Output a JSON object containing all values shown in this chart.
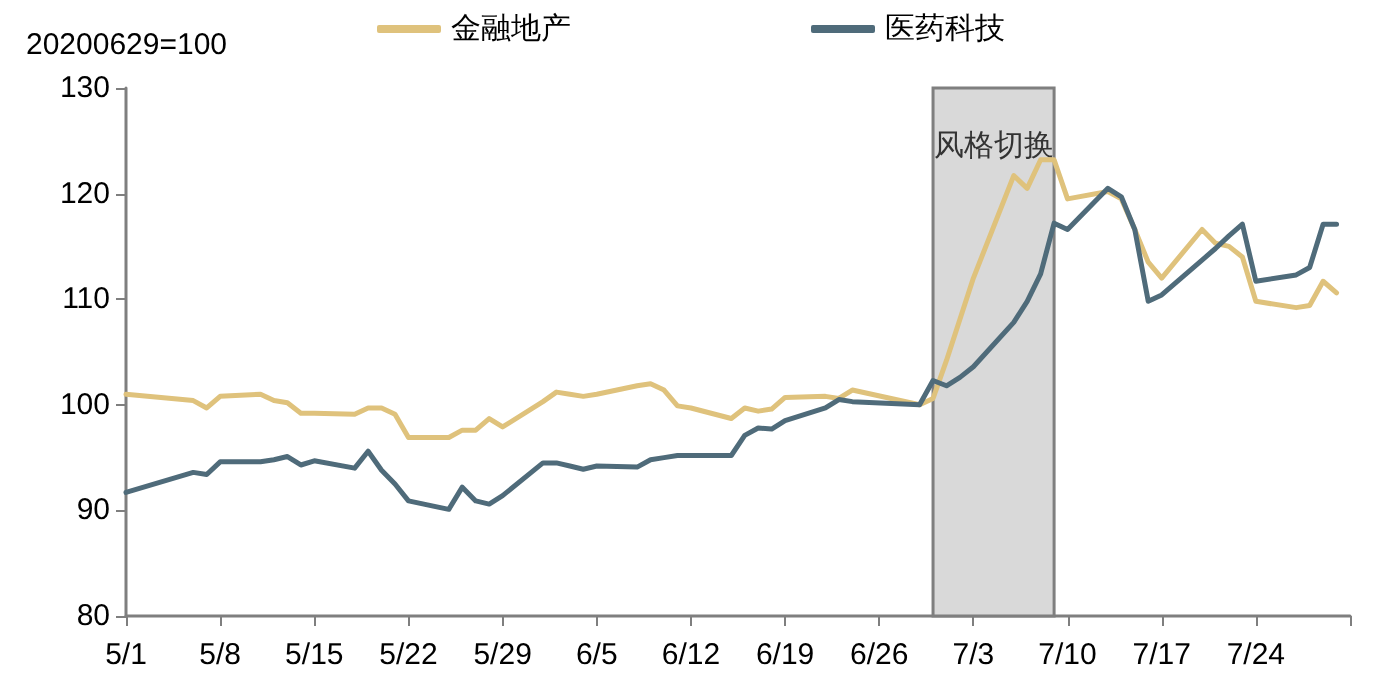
{
  "chart_data": {
    "type": "line",
    "ylabel": "20200629=100",
    "x": [
      "--05-01",
      "--05-06",
      "--05-07",
      "--05-08",
      "--05-11",
      "--05-12",
      "--05-13",
      "--05-14",
      "--05-15",
      "--05-18",
      "--05-19",
      "--05-20",
      "--05-21",
      "--05-22",
      "--05-25",
      "--05-26",
      "--05-27",
      "--05-28",
      "--05-29",
      "--06-01",
      "--06-02",
      "--06-03",
      "--06-04",
      "--06-05",
      "--06-08",
      "--06-09",
      "--06-10",
      "--06-11",
      "--06-12",
      "--06-15",
      "--06-16",
      "--06-17",
      "--06-18",
      "--06-19",
      "--06-22",
      "--06-23",
      "--06-24",
      "--06-29",
      "--06-30",
      "--07-01",
      "--07-02",
      "--07-03",
      "--07-06",
      "--07-07",
      "--07-08",
      "--07-09",
      "--07-10",
      "--07-13",
      "--07-14",
      "--07-15",
      "--07-16",
      "--07-17",
      "--07-20",
      "--07-21",
      "--07-22",
      "--07-23",
      "--07-24",
      "--07-27",
      "--07-28",
      "--07-29",
      "--07-30"
    ],
    "series": [
      {
        "name": "金融地产",
        "color": "#dfc27c",
        "values": [
          101.0,
          100.4,
          99.7,
          100.8,
          101.0,
          100.4,
          100.2,
          99.2,
          99.2,
          99.1,
          99.7,
          99.7,
          99.1,
          96.9,
          96.9,
          97.6,
          97.6,
          98.7,
          97.9,
          100.3,
          101.2,
          101.0,
          100.8,
          101.0,
          101.8,
          102.0,
          101.4,
          99.9,
          99.7,
          98.7,
          99.7,
          99.4,
          99.6,
          100.7,
          100.8,
          100.6,
          101.4,
          100,
          100.6,
          104.2,
          108.1,
          112.0,
          121.7,
          120.5,
          123.2,
          123.2,
          119.5,
          120.2,
          119.5,
          116.6,
          113.5,
          112.0,
          116.6,
          115.3,
          115.0,
          114.0,
          109.8,
          109.2,
          109.4,
          111.7,
          110.6
        ]
      },
      {
        "name": "医药科技",
        "color": "#4f6b7a",
        "values": [
          91.7,
          93.6,
          93.4,
          94.6,
          94.6,
          94.8,
          95.1,
          94.3,
          94.7,
          94.0,
          95.6,
          93.8,
          92.5,
          90.9,
          90.1,
          92.2,
          90.9,
          90.6,
          91.4,
          94.5,
          94.5,
          94.2,
          93.9,
          94.2,
          94.1,
          94.8,
          95.0,
          95.2,
          95.2,
          95.2,
          97.1,
          97.8,
          97.7,
          98.5,
          99.7,
          100.5,
          100.3,
          100,
          102.3,
          101.8,
          102.6,
          103.6,
          107.8,
          109.8,
          112.4,
          117.2,
          116.6,
          120.5,
          119.7,
          116.6,
          109.8,
          110.4,
          113.7,
          114.8,
          116.0,
          117.1,
          111.7,
          112.3,
          113.0,
          117.1,
          117.1
        ]
      }
    ],
    "xlim": [
      "--05-01",
      "--07-31"
    ],
    "xticks": [
      {
        "value": "--05-01",
        "label": "5/1"
      },
      {
        "value": "--05-08",
        "label": "5/8"
      },
      {
        "value": "--05-15",
        "label": "5/15"
      },
      {
        "value": "--05-22",
        "label": "5/22"
      },
      {
        "value": "--05-29",
        "label": "5/29"
      },
      {
        "value": "--06-05",
        "label": "6/5"
      },
      {
        "value": "--06-12",
        "label": "6/12"
      },
      {
        "value": "--06-19",
        "label": "6/19"
      },
      {
        "value": "--06-26",
        "label": "6/26"
      },
      {
        "value": "--07-03",
        "label": "7/3"
      },
      {
        "value": "--07-10",
        "label": "7/10"
      },
      {
        "value": "--07-17",
        "label": "7/17"
      },
      {
        "value": "--07-24",
        "label": "7/24"
      },
      {
        "value": "--07-31",
        "label": null
      }
    ],
    "ylim": [
      80,
      130
    ],
    "yticks": [
      80,
      90,
      100,
      110,
      120,
      130
    ],
    "bands": [
      {
        "axis": "x",
        "from": "--06-30",
        "to": "--07-09",
        "label": "风格切换",
        "color": "#d9d9d9"
      }
    ],
    "grid": false,
    "legend": "top",
    "marker": "none",
    "line_style": "solid"
  }
}
